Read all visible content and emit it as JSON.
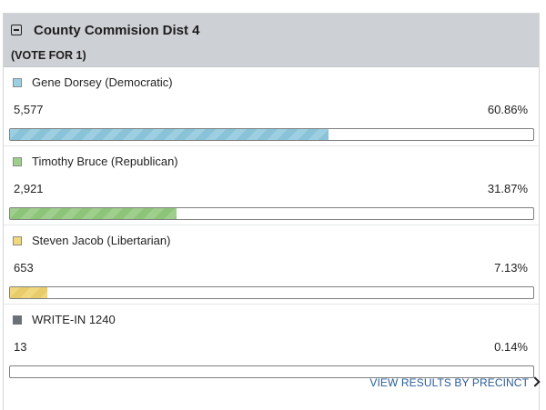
{
  "contest": {
    "title": "County Commision Dist 4",
    "vote_for": "(VOTE FOR 1)"
  },
  "candidates": [
    {
      "name": "Gene Dorsey (Democratic)",
      "votes": "5,577",
      "percent": "60.86%",
      "share": 0.6086,
      "color": "#9ccfe1",
      "stripe": "#8ac2d7"
    },
    {
      "name": "Timothy Bruce (Republican)",
      "votes": "2,921",
      "percent": "31.87%",
      "share": 0.3187,
      "color": "#9ecf8c",
      "stripe": "#8dc47a"
    },
    {
      "name": "Steven Jacob (Libertarian)",
      "votes": "653",
      "percent": "7.13%",
      "share": 0.0713,
      "color": "#f1d87e",
      "stripe": "#e8cc6c"
    },
    {
      "name": "WRITE-IN 1240",
      "votes": "13",
      "percent": "0.14%",
      "share": 0.0014,
      "color": "#6c7077",
      "stripe": "#6c7077"
    }
  ],
  "footer": {
    "link_label": "VIEW RESULTS BY PRECINCT",
    "chevron_icon": "chevron-right-icon"
  },
  "colors": {
    "header_bg": "#cdd0d5",
    "link": "#2a5d9b"
  }
}
